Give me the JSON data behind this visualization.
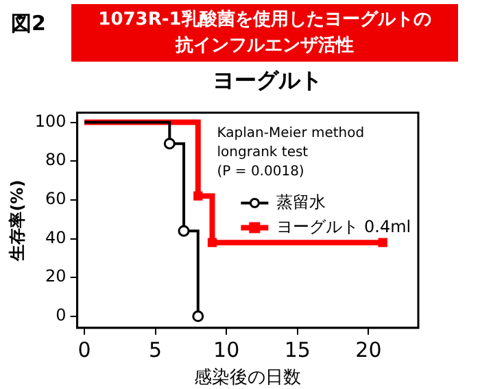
{
  "chart_data": {
    "type": "step",
    "title": "1073R-1乳酸菌を使用したヨーグルトの抗インフルエンザ活性",
    "subtitle": "ヨーグルト",
    "xlabel": "感染後の日数",
    "ylabel": "生存率(%)",
    "annotations": [
      "図2",
      "Kaplan-Meier method",
      "longrank test",
      "(P = 0.0018)"
    ],
    "series": [
      {
        "name": "蒸留水",
        "color": "#000000",
        "marker": "circle",
        "x": [
          0,
          6,
          7,
          8
        ],
        "values": [
          100,
          89,
          44,
          0
        ]
      },
      {
        "name": "ヨーグルト 0.4ml",
        "color": "#ff0000",
        "marker": "square",
        "x": [
          0,
          8,
          9,
          21
        ],
        "values": [
          100,
          62,
          38,
          38
        ]
      }
    ],
    "xlim": [
      -0.5,
      23.5
    ],
    "ylim": [
      -6,
      105
    ],
    "xticks": [
      0,
      5,
      10,
      15,
      20
    ],
    "yticks": [
      0,
      20,
      40,
      60,
      80,
      100
    ],
    "grid": false,
    "legend": "right"
  }
}
